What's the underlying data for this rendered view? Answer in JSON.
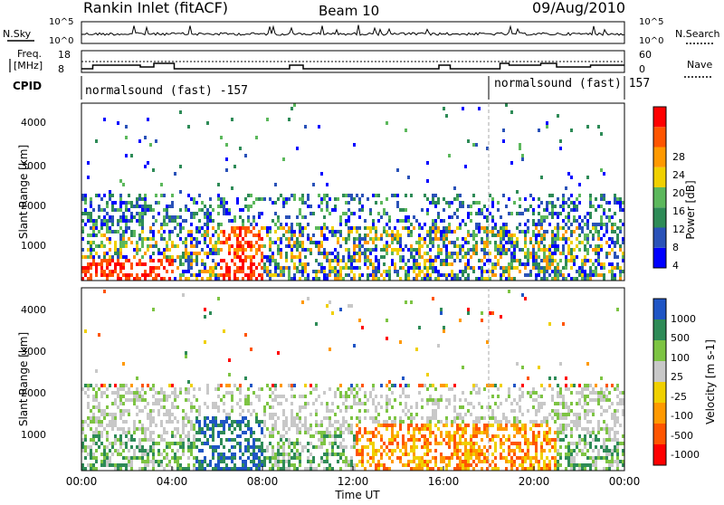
{
  "header": {
    "title": "Rankin Inlet (fitACF)",
    "beam": "Beam 10",
    "date": "09/Aug/2010"
  },
  "noise_panel": {
    "left_label": "N.Sky",
    "right_label": "N.Search",
    "left_ticks": [
      "10^5",
      "10^0"
    ],
    "right_ticks": [
      "10^5",
      "10^0"
    ]
  },
  "freq_panel": {
    "left_label_1": "Freq.",
    "left_label_2": "[MHz]",
    "right_label": "Nave",
    "left_ticks": [
      "18",
      "8"
    ],
    "right_ticks": [
      "60",
      "0"
    ]
  },
  "cpid_panel": {
    "label": "CPID",
    "segments": [
      {
        "text": "normalsound (fast) -157",
        "start_hour": 0
      },
      {
        "text": "normalsound (fast) 157",
        "start_hour": 18
      }
    ]
  },
  "colors": {
    "power": [
      "#0000ff",
      "#2a52b8",
      "#2e8b57",
      "#5cb85c",
      "#f0d000",
      "#ff9900",
      "#ff5500",
      "#ff0000"
    ],
    "velocity": [
      "#ff0000",
      "#ff5500",
      "#ff9900",
      "#f0d000",
      "#c8c8c8",
      "#7dc443",
      "#2e8b57",
      "#1f55c5"
    ]
  },
  "chart_data": [
    {
      "type": "heatmap",
      "parameter": "Power",
      "ylabel": "Slant Range [km]",
      "ylim": [
        180,
        4500
      ],
      "y_ticks": [
        "4000",
        "3000",
        "2000",
        "1000"
      ],
      "x_ticks": [
        "00:00",
        "04:00",
        "08:00",
        "12:00",
        "16:00",
        "20:00",
        "00:00"
      ],
      "xlim_hours": [
        0,
        24
      ],
      "colorbar": {
        "label": "Power [dB]",
        "tick_labels": [
          "4",
          "8",
          "12",
          "16",
          "20",
          "24",
          "28"
        ],
        "levels": [
          0,
          4,
          8,
          12,
          16,
          20,
          24,
          28,
          32
        ]
      }
    },
    {
      "type": "heatmap",
      "parameter": "Velocity",
      "ylabel": "Slant Range [km]",
      "xlabel": "Time UT",
      "ylim": [
        180,
        4500
      ],
      "y_ticks": [
        "4000",
        "3000",
        "2000",
        "1000"
      ],
      "x_ticks": [
        "00:00",
        "04:00",
        "08:00",
        "12:00",
        "16:00",
        "20:00",
        "00:00"
      ],
      "xlim_hours": [
        0,
        24
      ],
      "colorbar": {
        "label": "Velocity [m s-1]",
        "tick_labels": [
          "-1000",
          "-500",
          "-100",
          "-25",
          "25",
          "100",
          "500",
          "1000"
        ]
      }
    }
  ]
}
